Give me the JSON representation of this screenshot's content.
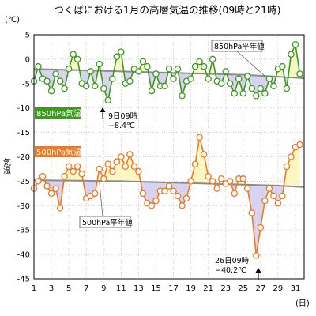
{
  "chart_data": {
    "type": "line",
    "title": "つくばにおける1月の高層気温の推移(09時と21時)",
    "unit": "(℃)",
    "ylabel": "気温",
    "xunit": "(日)",
    "ylim": [
      -45,
      5
    ],
    "yticks": [
      5,
      0,
      -5,
      -10,
      -15,
      -20,
      -25,
      -30,
      -35,
      -40,
      -45
    ],
    "xlim": [
      1,
      32
    ],
    "xticks": [
      1,
      3,
      5,
      7,
      9,
      11,
      13,
      15,
      17,
      19,
      21,
      23,
      25,
      27,
      29,
      31
    ],
    "grid": true,
    "series": [
      {
        "name": "850hPa気温",
        "color": "#3c9a1c",
        "fill_color": "#f6f5c4",
        "normal_name": "850hPa平年値",
        "normal": [
          -2.0,
          -2.05,
          -2.1,
          -2.15,
          -2.2,
          -2.25,
          -2.3,
          -2.35,
          -2.4,
          -2.45,
          -2.5,
          -2.55,
          -2.6,
          -2.65,
          -2.7,
          -2.75,
          -2.8,
          -2.85,
          -2.9,
          -2.95,
          -3.0,
          -3.05,
          -3.1,
          -3.15,
          -3.2,
          -3.3,
          -3.4,
          -3.5,
          -3.6,
          -3.7,
          -3.8,
          -3.9
        ],
        "x": [
          1,
          1.5,
          2,
          2.5,
          3,
          3.5,
          4,
          4.5,
          5,
          5.5,
          6,
          6.5,
          7,
          7.5,
          8,
          8.5,
          9,
          9.5,
          10,
          10.5,
          11,
          11.5,
          12,
          12.5,
          13,
          13.5,
          14,
          14.5,
          15,
          15.5,
          16,
          16.5,
          17,
          17.5,
          18,
          18.5,
          19,
          19.5,
          20,
          20.5,
          21,
          21.5,
          22,
          22.5,
          23,
          23.5,
          24,
          24.5,
          25,
          25.5,
          26,
          26.5,
          27,
          27.5,
          28,
          28.5,
          29,
          29.5,
          30,
          30.5,
          31,
          31.5
        ],
        "values": [
          -4.5,
          -1.5,
          -4.0,
          -4.5,
          -6.5,
          -3.0,
          -4.5,
          -6.0,
          -2.0,
          1.0,
          0.0,
          -5.0,
          -5.5,
          -2.5,
          -5.5,
          -1.0,
          -6.0,
          -8.4,
          -4.0,
          0.5,
          1.5,
          -5.0,
          -4.5,
          -2.0,
          -2.5,
          -0.5,
          -1.5,
          -6.5,
          -3.0,
          -5.5,
          -5.5,
          -2.0,
          -4.0,
          -2.0,
          -7.5,
          -4.5,
          -4.0,
          -1.5,
          -0.5,
          -1.5,
          -4.0,
          0.0,
          -4.5,
          -5.0,
          -2.5,
          -5.0,
          -7.0,
          -4.0,
          -7.0,
          -3.5,
          -6.0,
          -7.5,
          -6.0,
          -7.0,
          -4.0,
          -5.5,
          -2.0,
          -1.5,
          -6.0,
          1.0,
          3.0,
          -3.0
        ]
      },
      {
        "name": "500hPa気温",
        "color": "#f07820",
        "fill_color": "#fbf6c2",
        "normal_name": "500hPa平年値",
        "normal": [
          -24.8,
          -24.82,
          -24.84,
          -24.86,
          -24.88,
          -24.9,
          -24.92,
          -24.94,
          -24.96,
          -24.98,
          -25.0,
          -25.05,
          -25.1,
          -25.15,
          -25.2,
          -25.25,
          -25.3,
          -25.35,
          -25.4,
          -25.45,
          -25.5,
          -25.55,
          -25.6,
          -25.65,
          -25.7,
          -25.75,
          -25.8,
          -25.85,
          -25.9,
          -26.0,
          -26.1,
          -26.2
        ],
        "x": [
          1,
          1.5,
          2,
          2.5,
          3,
          3.5,
          4,
          4.5,
          5,
          5.5,
          6,
          6.5,
          7,
          7.5,
          8,
          8.5,
          9,
          9.5,
          10,
          10.5,
          11,
          11.5,
          12,
          12.5,
          13,
          13.5,
          14,
          14.5,
          15,
          15.5,
          16,
          16.5,
          17,
          17.5,
          18,
          18.5,
          19,
          19.5,
          20,
          20.5,
          21,
          21.5,
          22,
          22.5,
          23,
          23.5,
          24,
          24.5,
          25,
          25.5,
          26,
          26.5,
          27,
          27.5,
          28,
          28.5,
          29,
          29.5,
          30,
          30.5,
          31,
          31.5
        ],
        "values": [
          -26.5,
          -25.0,
          -24.0,
          -26.0,
          -27.5,
          -26.5,
          -30.5,
          -24.0,
          -22.0,
          -23.0,
          -22.0,
          -23.5,
          -28.5,
          -28.0,
          -27.5,
          -22.5,
          -24.5,
          -21.5,
          -23.0,
          -21.0,
          -20.0,
          -22.0,
          -19.5,
          -22.0,
          -23.0,
          -27.5,
          -29.5,
          -30.0,
          -29.0,
          -27.0,
          -27.0,
          -26.0,
          -27.0,
          -28.0,
          -30.0,
          -28.5,
          -25.0,
          -21.5,
          -16.0,
          -19.5,
          -24.0,
          -25.0,
          -26.5,
          -24.5,
          -25.5,
          -25.0,
          -27.5,
          -24.5,
          -24.5,
          -26.5,
          -31.5,
          -40.2,
          -34.5,
          -29.0,
          -26.5,
          -28.0,
          -29.5,
          -28.0,
          -22.0,
          -20.0,
          -18.0,
          -17.5
        ]
      }
    ],
    "annotations": [
      {
        "line1": "9日09時",
        "line2": "−8.4℃",
        "x": 9.5,
        "y": -8.4
      },
      {
        "line1": "26日09時",
        "line2": "−40.2℃",
        "x": 26.5,
        "y": -40.2
      }
    ]
  }
}
